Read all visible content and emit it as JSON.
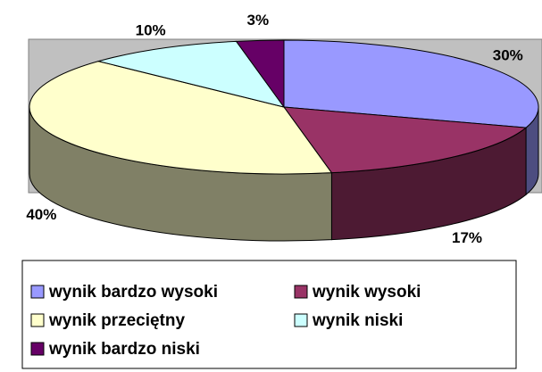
{
  "chart_data": {
    "type": "pie3d",
    "categories": [
      "wynik bardzo wysoki",
      "wynik wysoki",
      "wynik przeciętny",
      "wynik niski",
      "wynik bardzo niski"
    ],
    "values": [
      30,
      17,
      40,
      10,
      3
    ],
    "value_labels": [
      "30%",
      "17%",
      "40%",
      "10%",
      "3%"
    ],
    "colors": [
      "#9999FF",
      "#993366",
      "#FFFFCC",
      "#CCFFFF",
      "#660066"
    ]
  }
}
